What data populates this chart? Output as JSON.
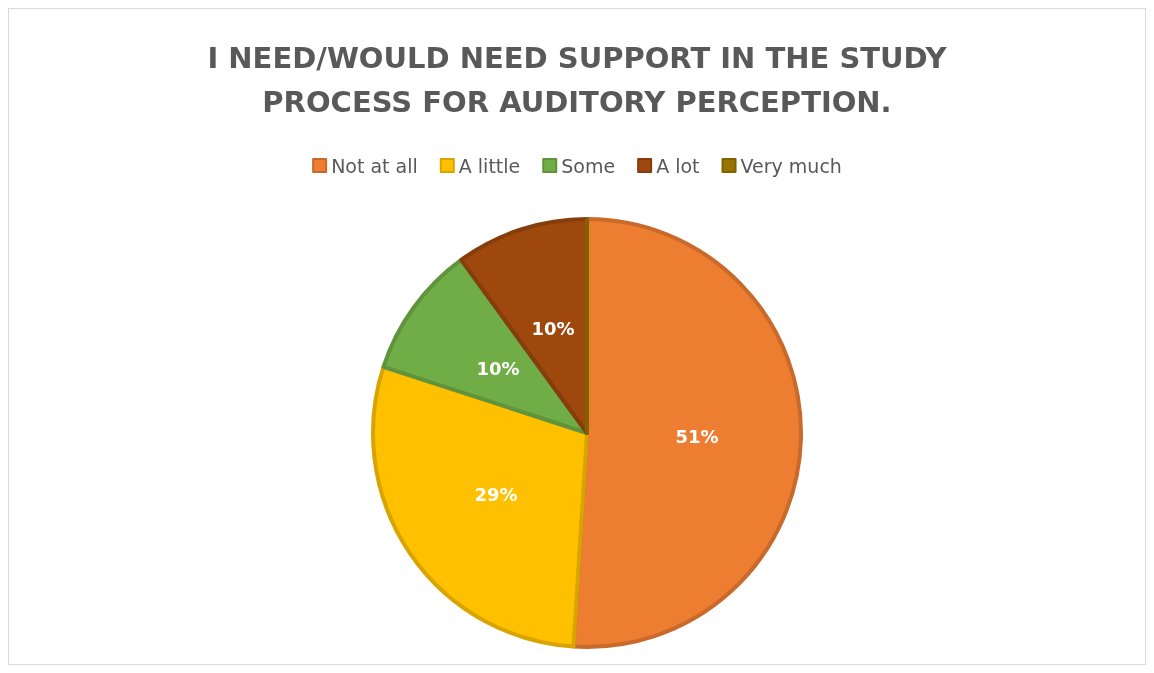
{
  "chart_data": {
    "type": "pie",
    "title": "I NEED/WOULD NEED SUPPORT IN THE STUDY PROCESS FOR AUDITORY PERCEPTION.",
    "categories": [
      "Not at all",
      "A little",
      "Some",
      "A lot",
      "Very much"
    ],
    "values": [
      51,
      29,
      10,
      10,
      0
    ],
    "colors": [
      "#ed7d31",
      "#ffc000",
      "#70ad47",
      "#9e480e",
      "#997300"
    ],
    "value_labels": [
      "51%",
      "29%",
      "10%",
      "10%",
      null
    ],
    "legend": "top"
  }
}
